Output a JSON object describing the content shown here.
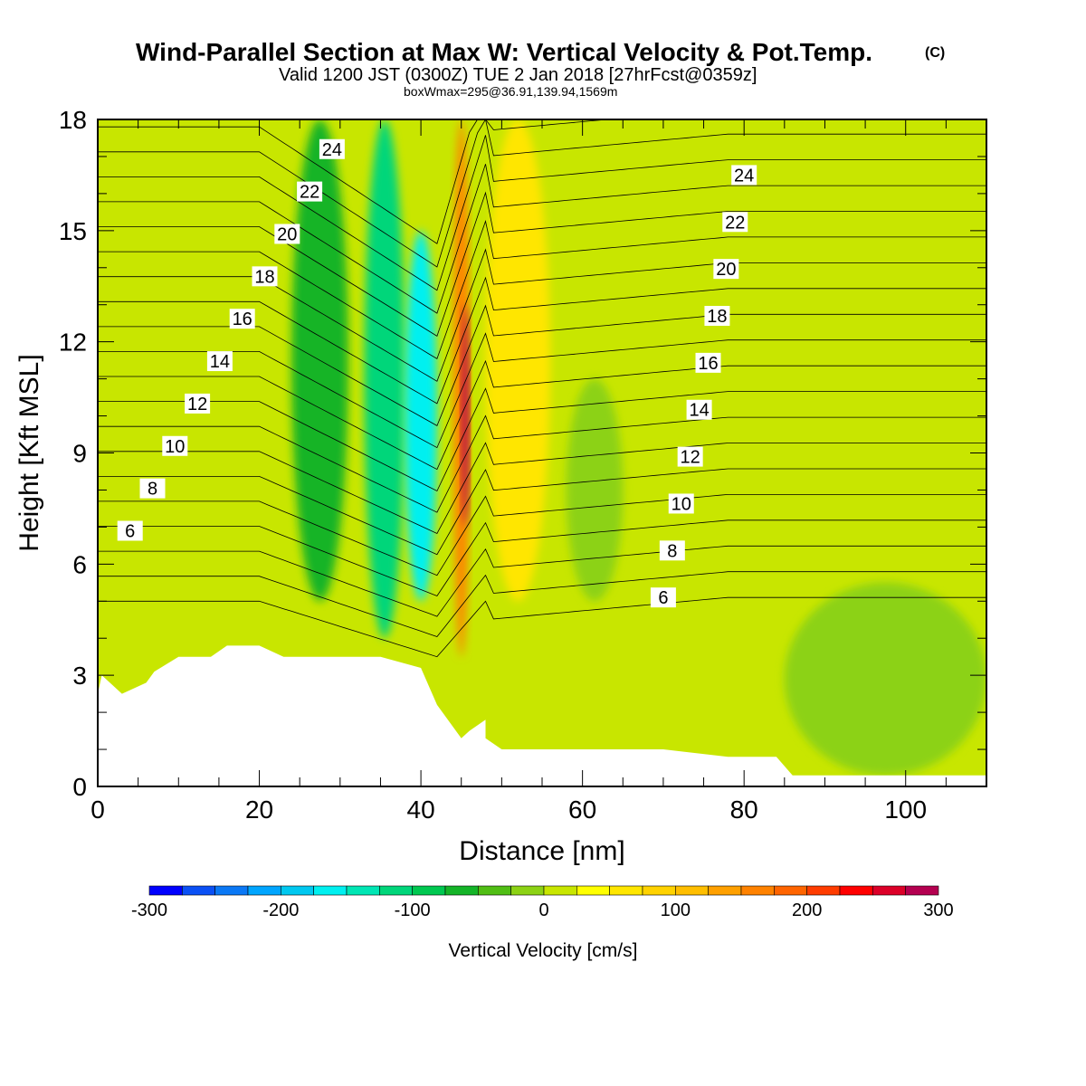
{
  "header": {
    "title": "Wind-Parallel Section at Max W: Vertical Velocity & Pot.Temp.",
    "title_mark": "(C)",
    "subtitle": "Valid 1200 JST (0300Z) TUE 2 Jan 2018 [27hrFcst@0359z]",
    "subsubtitle": "boxWmax=295@36.91,139.94,1569m"
  },
  "chart_data": {
    "type": "heatmap",
    "title": "Wind-Parallel Section at Max W: Vertical Velocity & Pot.Temp.",
    "xlabel": "Distance [nm]",
    "ylabel": "Height [Kft MSL]",
    "xlim": [
      0,
      110
    ],
    "ylim": [
      0,
      18
    ],
    "xticks": [
      0,
      20,
      40,
      60,
      80,
      100
    ],
    "yticks": [
      0,
      3,
      6,
      9,
      12,
      15,
      18
    ],
    "colorbar": {
      "label": "Vertical Velocity [cm/s]",
      "range": [
        -300,
        300
      ],
      "step": 25,
      "tick_values": [
        -300,
        -200,
        -100,
        0,
        100,
        200,
        300
      ],
      "colors": [
        "#0000ff",
        "#0a50f5",
        "#0a78f5",
        "#00a5ff",
        "#00c8f0",
        "#00f0f0",
        "#00e6b4",
        "#00d67a",
        "#00c850",
        "#14b428",
        "#50be14",
        "#8cd214",
        "#c8e600",
        "#ffff00",
        "#ffe600",
        "#ffd200",
        "#ffbe00",
        "#ffa000",
        "#ff8200",
        "#ff6400",
        "#ff3c00",
        "#ff0000",
        "#dc0028",
        "#b40050",
        "#8c0078",
        "#640096"
      ]
    },
    "vertical_velocity_cells": [
      {
        "x": [
          0,
          22
        ],
        "y": [
          0,
          18
        ],
        "w": 0
      },
      {
        "x": [
          24,
          31
        ],
        "y": [
          5,
          18
        ],
        "w": -60
      },
      {
        "x": [
          33,
          38
        ],
        "y": [
          4,
          18
        ],
        "w": -110
      },
      {
        "x": [
          38,
          42
        ],
        "y": [
          5,
          15
        ],
        "w": -170
      },
      {
        "x": [
          44,
          46
        ],
        "y": [
          3.5,
          18
        ],
        "w": 160
      },
      {
        "x": [
          45,
          46
        ],
        "y": [
          7,
          13
        ],
        "w": 295
      },
      {
        "x": [
          48,
          56
        ],
        "y": [
          5,
          18
        ],
        "w": 60
      },
      {
        "x": [
          58,
          65
        ],
        "y": [
          5,
          11
        ],
        "w": -20
      },
      {
        "x": [
          85,
          110
        ],
        "y": [
          0.3,
          5.5
        ],
        "w": -10
      }
    ],
    "theta_contour_labels": [
      6,
      8,
      10,
      12,
      14,
      16,
      18,
      20,
      22,
      24
    ],
    "theta_contour_levels": [
      6,
      7,
      8,
      9,
      10,
      11,
      12,
      13,
      14,
      15,
      16,
      17,
      18,
      19,
      20,
      21,
      22,
      23,
      24,
      25
    ],
    "terrain_kft": {
      "x": [
        0,
        0.5,
        3,
        6,
        7,
        10,
        14,
        16,
        20,
        23,
        30,
        35,
        40,
        42,
        45,
        46,
        48,
        48,
        50,
        55,
        65,
        70,
        78,
        80,
        84,
        86,
        90,
        100,
        110
      ],
      "y": [
        2.5,
        3.0,
        2.5,
        2.8,
        3.1,
        3.5,
        3.5,
        3.8,
        3.8,
        3.5,
        3.5,
        3.5,
        3.2,
        2.2,
        1.3,
        1.5,
        1.8,
        1.3,
        1.0,
        1.0,
        1.0,
        1.0,
        0.8,
        0.8,
        0.8,
        0.3,
        0.3,
        0.3,
        0.3
      ]
    }
  }
}
